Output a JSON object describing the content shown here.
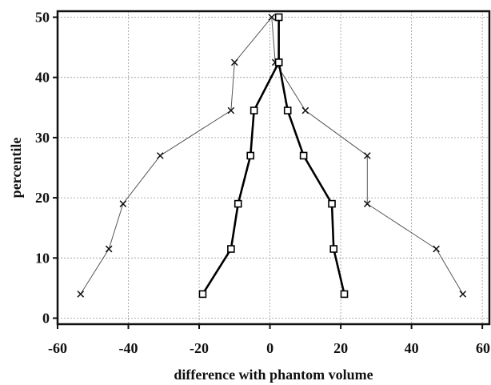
{
  "chart_data": {
    "type": "line",
    "title": "",
    "xlabel": "difference with phantom volume",
    "ylabel": "percentile",
    "xlim": [
      -60,
      62
    ],
    "ylim": [
      -1,
      51
    ],
    "x_ticks": [
      "-60",
      "-40",
      "-20",
      "0",
      "20",
      "40",
      "60"
    ],
    "y_ticks": [
      "0",
      "10",
      "20",
      "30",
      "40",
      "50"
    ],
    "grid": true,
    "legend": "none",
    "series": [
      {
        "marker": "cross",
        "style": "thin",
        "color": "#555555",
        "points": [
          {
            "x": -53.5,
            "y": 4
          },
          {
            "x": -45.5,
            "y": 11.5
          },
          {
            "x": -41.5,
            "y": 19
          },
          {
            "x": -31,
            "y": 27
          },
          {
            "x": -11,
            "y": 34.5
          },
          {
            "x": -10,
            "y": 42.5
          },
          {
            "x": 0.5,
            "y": 50
          },
          {
            "x": 1.5,
            "y": 42.5
          },
          {
            "x": 10,
            "y": 34.5
          },
          {
            "x": 27.5,
            "y": 27
          },
          {
            "x": 27.5,
            "y": 19
          },
          {
            "x": 47,
            "y": 11.5
          },
          {
            "x": 54.5,
            "y": 4
          }
        ]
      },
      {
        "marker": "square",
        "style": "thick",
        "color": "#000000",
        "points": [
          {
            "x": -19,
            "y": 4
          },
          {
            "x": -11,
            "y": 11.5
          },
          {
            "x": -9,
            "y": 19
          },
          {
            "x": -5.5,
            "y": 27
          },
          {
            "x": -4.5,
            "y": 34.5
          },
          {
            "x": 2.5,
            "y": 42.5
          },
          {
            "x": 2.5,
            "y": 50
          },
          {
            "x": 2.5,
            "y": 42.5
          },
          {
            "x": 5,
            "y": 34.5
          },
          {
            "x": 9.5,
            "y": 27
          },
          {
            "x": 17.5,
            "y": 19
          },
          {
            "x": 18,
            "y": 11.5
          },
          {
            "x": 21,
            "y": 4
          }
        ]
      }
    ]
  }
}
